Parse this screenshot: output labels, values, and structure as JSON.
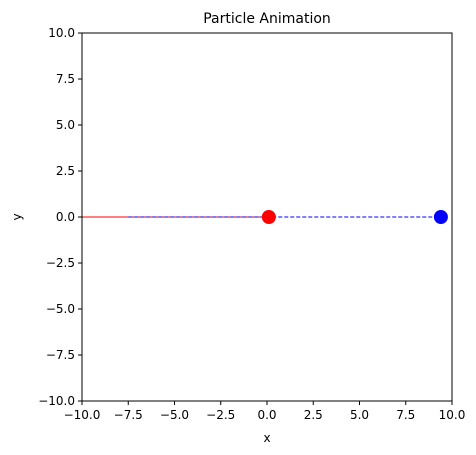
{
  "chart_data": {
    "type": "scatter",
    "title": "Particle Animation",
    "xlabel": "x",
    "ylabel": "y",
    "xlim": [
      -10,
      10
    ],
    "ylim": [
      -10,
      10
    ],
    "xticks": [
      -10.0,
      -7.5,
      -5.0,
      -2.5,
      0.0,
      2.5,
      5.0,
      7.5,
      10.0
    ],
    "yticks": [
      -10.0,
      -7.5,
      -5.0,
      -2.5,
      0.0,
      2.5,
      5.0,
      7.5,
      10.0
    ],
    "xtick_labels": [
      "−10.0",
      "−7.5",
      "−5.0",
      "−2.5",
      "0.0",
      "2.5",
      "5.0",
      "7.5",
      "10.0"
    ],
    "ytick_labels": [
      "−10.0",
      "−7.5",
      "−5.0",
      "−2.5",
      "0.0",
      "2.5",
      "5.0",
      "7.5",
      "10.0"
    ],
    "grid": false,
    "series": [
      {
        "color": "#ff0000",
        "trail_style": "solid",
        "trail_x": [
          -10.0,
          0.1
        ],
        "trail_y": [
          0.0,
          0.0
        ],
        "point": {
          "x": 0.1,
          "y": 0.0
        }
      },
      {
        "color": "#0000ff",
        "trail_style": "dashed",
        "trail_x": [
          -7.5,
          9.4
        ],
        "trail_y": [
          0.0,
          0.0
        ],
        "point": {
          "x": 9.4,
          "y": 0.0
        }
      }
    ]
  }
}
